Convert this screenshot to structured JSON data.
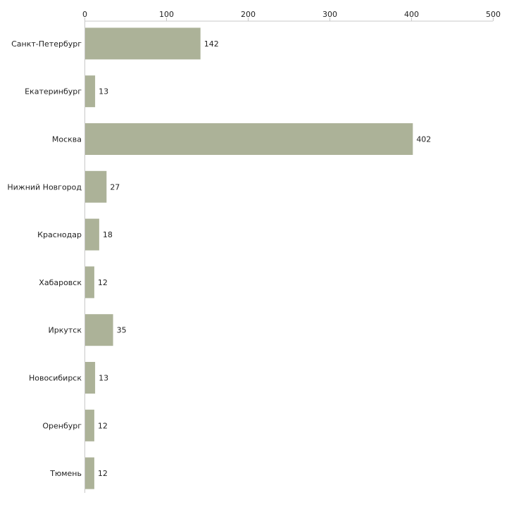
{
  "chart_data": {
    "type": "bar",
    "orientation": "horizontal",
    "title": "",
    "xlabel": "",
    "ylabel": "",
    "categories": [
      "Санкт-Петербург",
      "Екатеринбург",
      "Москва",
      "Нижний Новгород",
      "Краснодар",
      "Хабаровск",
      "Иркутск",
      "Новосибирск",
      "Оренбург",
      "Тюмень"
    ],
    "values": [
      142,
      13,
      402,
      27,
      18,
      12,
      35,
      13,
      12,
      12
    ],
    "xlim": [
      0,
      500
    ],
    "ticks": [
      0,
      100,
      200,
      300,
      400,
      500
    ],
    "tick_labels": [
      "0",
      "100",
      "200",
      "300",
      "400",
      "500"
    ],
    "axis_position": "top",
    "grid": false,
    "bar_color": "#acb298",
    "axis_color": "#c8c8c8"
  }
}
